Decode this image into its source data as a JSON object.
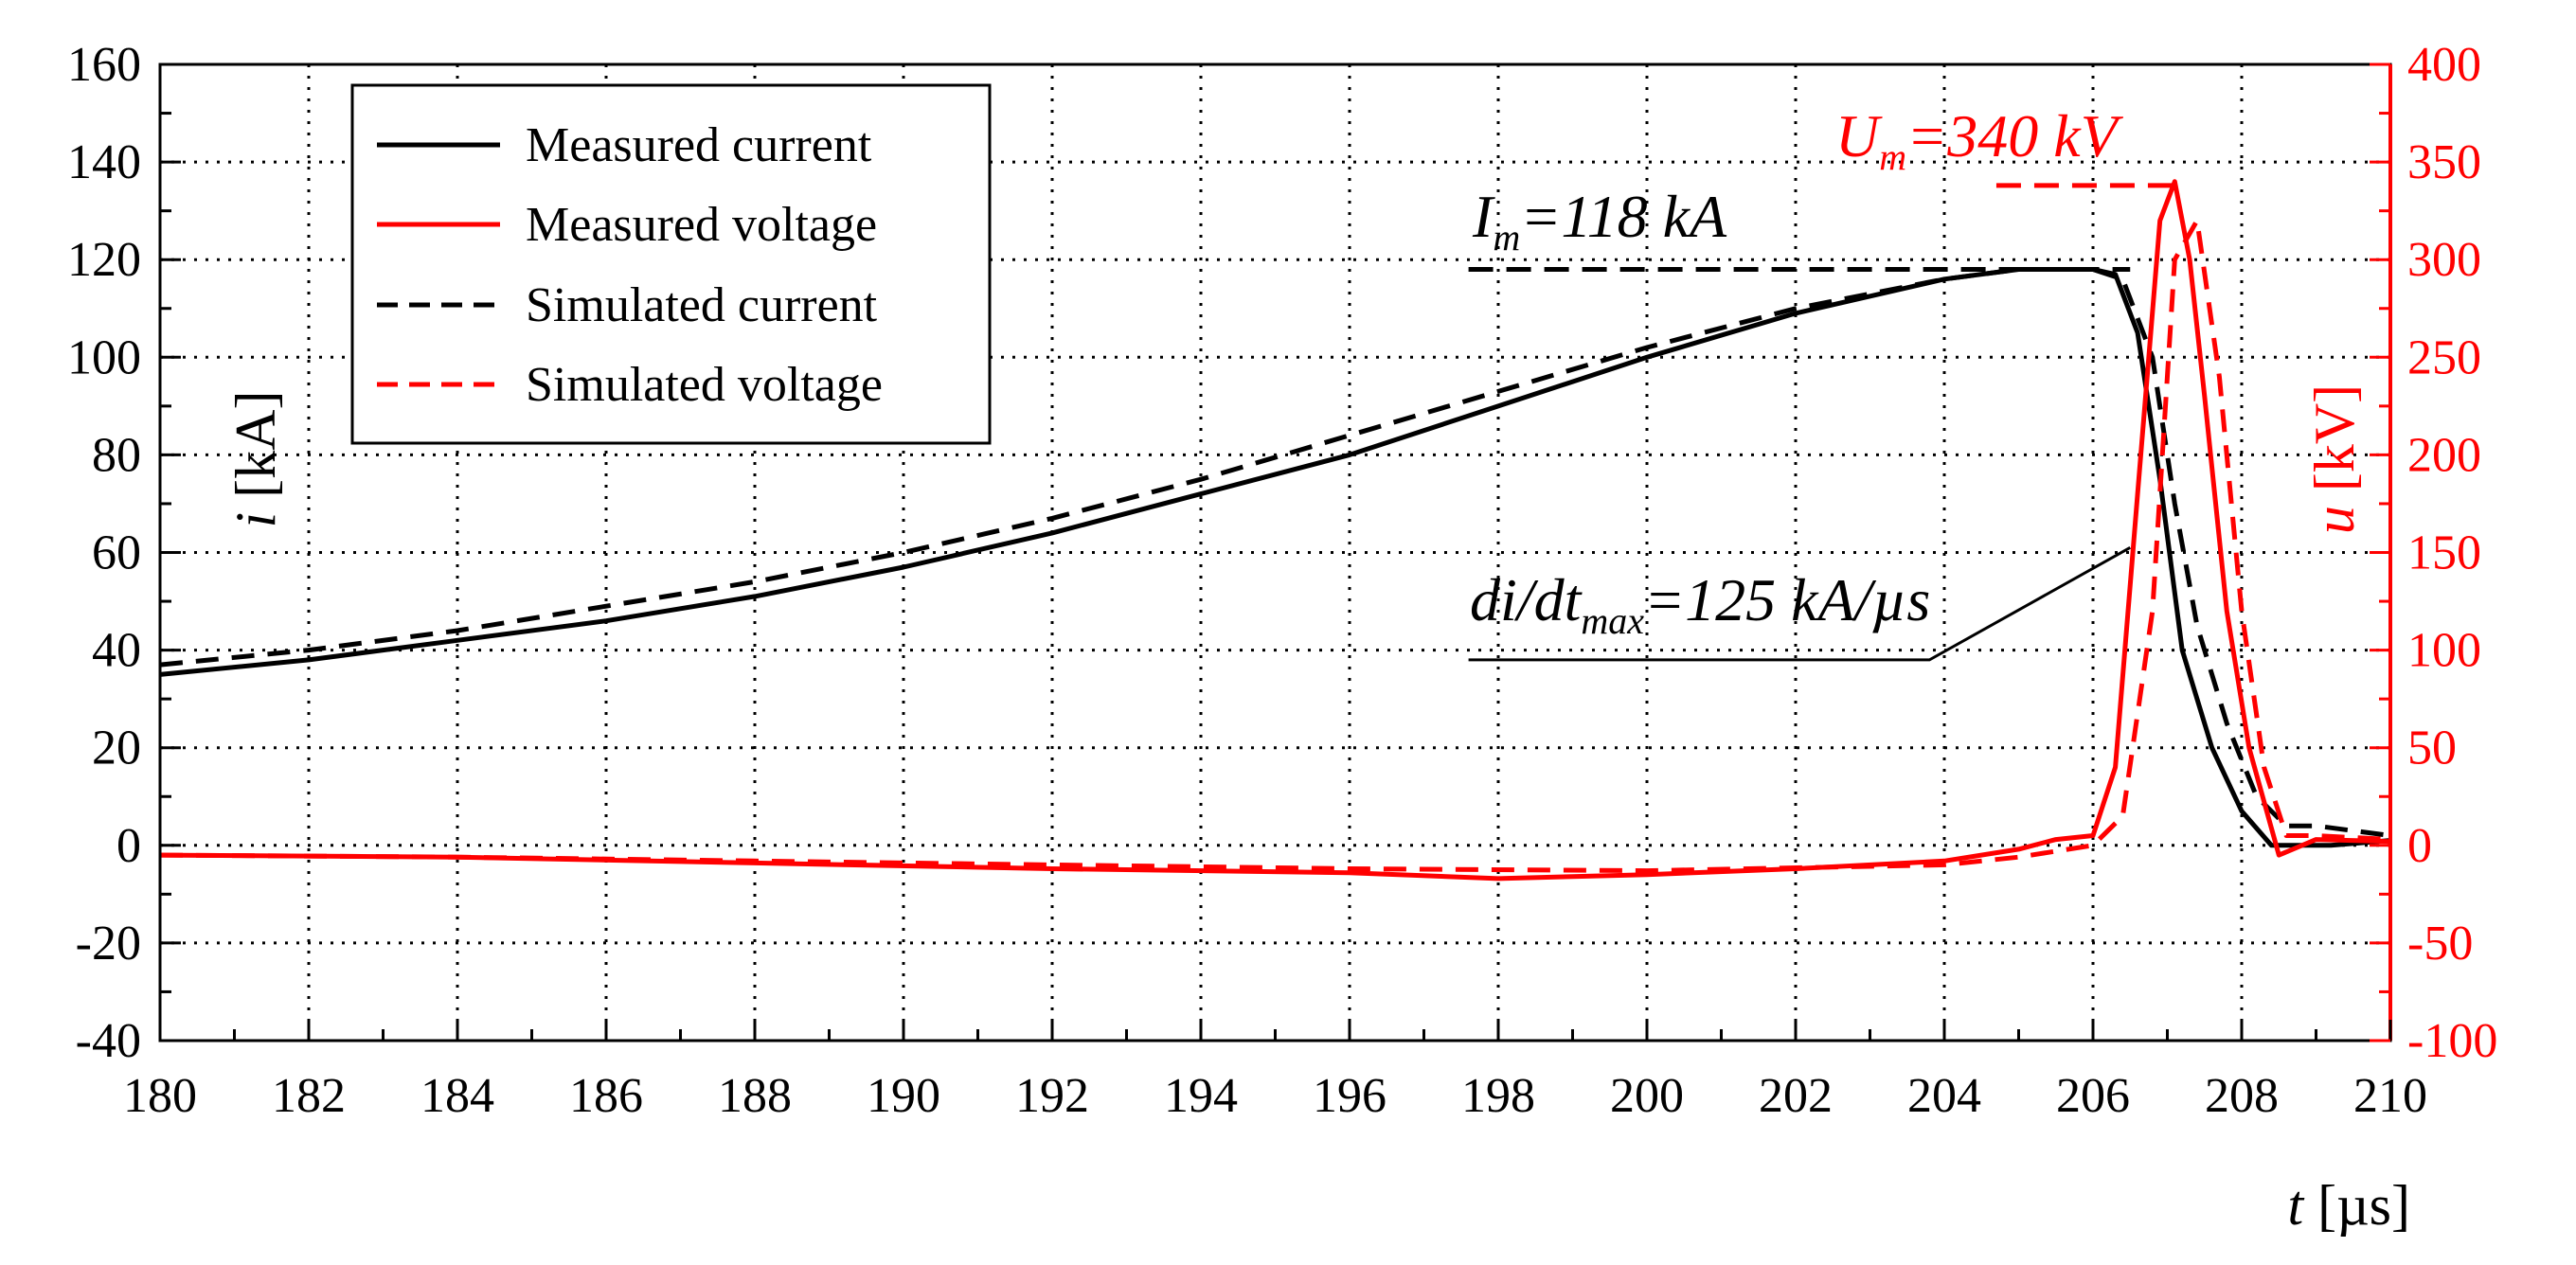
{
  "chart_data": {
    "type": "line",
    "colors": {
      "current": "#000000",
      "voltage": "#ff0000",
      "grid": "#000000",
      "background": "#ffffff"
    },
    "x_axis": {
      "label_var": "t",
      "label_unit": "[µs]",
      "range": [
        180,
        210
      ],
      "ticks": [
        "180",
        "182",
        "184",
        "186",
        "188",
        "190",
        "192",
        "194",
        "196",
        "198",
        "200",
        "202",
        "204",
        "206",
        "208",
        "210"
      ]
    },
    "y_left": {
      "label_var": "i",
      "label_unit": "[kA]",
      "range": [
        -40,
        160
      ],
      "ticks": [
        "160",
        "140",
        "120",
        "100",
        "80",
        "60",
        "40",
        "20",
        "0",
        "-20",
        "-40"
      ]
    },
    "y_right": {
      "label_var": "u",
      "label_unit": "[kV]",
      "range": [
        -100,
        400
      ],
      "ticks": [
        "400",
        "350",
        "300",
        "250",
        "200",
        "150",
        "100",
        "50",
        "0",
        "-50",
        "-100"
      ]
    },
    "grid": true,
    "legend": {
      "position": "top-left",
      "entries": [
        "Measured current",
        "Measured voltage",
        "Simulated current",
        "Simulated voltage"
      ]
    },
    "series": [
      {
        "name": "Measured current",
        "axis": "left",
        "style": "solid",
        "color": "#000000",
        "x": [
          180,
          182,
          184,
          186,
          188,
          190,
          192,
          194,
          196,
          198,
          200,
          202,
          204,
          205,
          206,
          206.3,
          206.6,
          206.9,
          207.2,
          207.6,
          208,
          208.4,
          208.8,
          209.2,
          210
        ],
        "y": [
          35,
          38,
          42,
          46,
          51,
          57,
          64,
          72,
          80,
          90,
          100,
          109,
          116,
          118,
          118,
          117,
          105,
          75,
          40,
          20,
          7,
          0,
          0,
          0,
          1
        ]
      },
      {
        "name": "Simulated current",
        "axis": "left",
        "style": "dashed",
        "color": "#000000",
        "x": [
          180,
          182,
          184,
          186,
          188,
          190,
          192,
          194,
          196,
          198,
          200,
          202,
          204,
          205,
          206,
          206.4,
          206.8,
          207.1,
          207.4,
          207.8,
          208.2,
          208.6,
          209,
          210
        ],
        "y": [
          37,
          40,
          44,
          49,
          54,
          60,
          67,
          75,
          84,
          93,
          102,
          110,
          116,
          118,
          118,
          116,
          100,
          70,
          45,
          25,
          10,
          4,
          4,
          2
        ]
      },
      {
        "name": "Measured voltage",
        "axis": "right",
        "style": "solid",
        "color": "#ff0000",
        "x": [
          180,
          184,
          188,
          192,
          196,
          198,
          200,
          202,
          204,
          205,
          205.5,
          206,
          206.3,
          206.6,
          206.9,
          207.1,
          207.3,
          207.5,
          207.8,
          208.1,
          208.5,
          209,
          210
        ],
        "y": [
          -5,
          -6,
          -9,
          -12,
          -14,
          -17,
          -15,
          -12,
          -8,
          -2,
          3,
          5,
          40,
          180,
          320,
          340,
          300,
          230,
          120,
          50,
          -5,
          3,
          2
        ]
      },
      {
        "name": "Simulated voltage",
        "axis": "right",
        "style": "dashed",
        "color": "#ff0000",
        "x": [
          180,
          184,
          188,
          192,
          196,
          200,
          204,
          205,
          206,
          206.4,
          206.8,
          207.1,
          207.4,
          207.7,
          208,
          208.3,
          208.6,
          209,
          210
        ],
        "y": [
          -5,
          -6,
          -8,
          -10,
          -12,
          -13,
          -10,
          -6,
          0,
          15,
          120,
          300,
          320,
          240,
          120,
          40,
          5,
          5,
          3
        ]
      }
    ],
    "annotations": {
      "current_peak": {
        "symbol": "I",
        "sub": "m",
        "value": "=118 kA",
        "level_kA": 118,
        "x_from": 197.6,
        "x_to": 206.5
      },
      "voltage_peak": {
        "symbol": "U",
        "sub": "m",
        "value": "=340 kV",
        "level_kV": 338,
        "x_from": 204.7,
        "x_to": 207.2
      },
      "didt": {
        "prefix": "di/dt",
        "sub": "max",
        "value": "=125 kA/µs",
        "line_start": [
          197.6,
          38
        ],
        "line_knee": [
          203.8,
          38
        ],
        "line_end": [
          206.5,
          61
        ]
      }
    }
  }
}
